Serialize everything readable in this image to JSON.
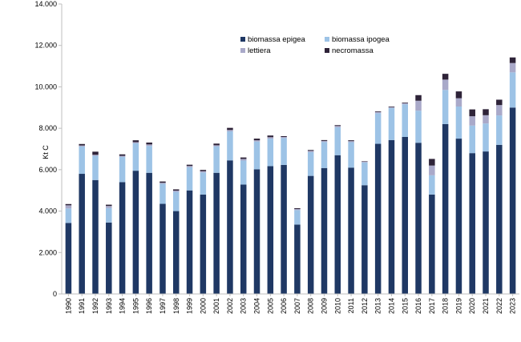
{
  "chart_data": {
    "type": "bar",
    "stacked": true,
    "ylabel": "Kt C",
    "ylim": [
      0,
      14000
    ],
    "yticks": [
      0,
      2000,
      4000,
      6000,
      8000,
      10000,
      12000,
      14000
    ],
    "ytick_labels": [
      "0",
      "2.000",
      "4.000",
      "6.000",
      "8.000",
      "10.000",
      "12.000",
      "14.000"
    ],
    "grid": "none",
    "legend_position": "top-center",
    "categories": [
      "1990",
      "1991",
      "1992",
      "1993",
      "1994",
      "1995",
      "1996",
      "1997",
      "1998",
      "1999",
      "2000",
      "2001",
      "2002",
      "2003",
      "2004",
      "2005",
      "2006",
      "2007",
      "2008",
      "2009",
      "2010",
      "2011",
      "2012",
      "2013",
      "2014",
      "2015",
      "2016",
      "2017",
      "2018",
      "2019",
      "2020",
      "2021",
      "2022",
      "2023"
    ],
    "series": [
      {
        "name": "biomassa epigea",
        "color": "#1f3864",
        "values": [
          3430,
          5800,
          5500,
          3450,
          5400,
          5950,
          5850,
          4350,
          4000,
          5000,
          4800,
          5850,
          6450,
          5280,
          6020,
          6170,
          6230,
          3350,
          5700,
          6080,
          6700,
          6100,
          5250,
          7250,
          7430,
          7580,
          7300,
          4800,
          8200,
          7500,
          6800,
          6880,
          7200,
          9000
        ]
      },
      {
        "name": "biomassa ipogea",
        "color": "#9dc3e6",
        "values": [
          700,
          1320,
          1170,
          700,
          1220,
          1330,
          1300,
          970,
          930,
          1120,
          1070,
          1280,
          1400,
          1160,
          1340,
          1330,
          1300,
          700,
          1150,
          1260,
          1350,
          1230,
          1100,
          1480,
          1550,
          1580,
          1550,
          930,
          1650,
          1550,
          1330,
          1350,
          1420,
          1700
        ]
      },
      {
        "name": "lettiera",
        "color": "#a9a9c9",
        "values": [
          150,
          50,
          50,
          100,
          50,
          50,
          70,
          50,
          60,
          60,
          60,
          50,
          70,
          80,
          60,
          70,
          50,
          50,
          60,
          50,
          60,
          50,
          40,
          60,
          40,
          50,
          480,
          470,
          500,
          400,
          450,
          400,
          500,
          450
        ]
      },
      {
        "name": "necromassa",
        "color": "#2e2338",
        "values": [
          60,
          70,
          150,
          60,
          70,
          90,
          90,
          60,
          60,
          60,
          60,
          80,
          100,
          70,
          80,
          80,
          40,
          40,
          40,
          40,
          40,
          40,
          20,
          30,
          30,
          30,
          270,
          320,
          280,
          330,
          330,
          290,
          260,
          270
        ]
      }
    ]
  }
}
